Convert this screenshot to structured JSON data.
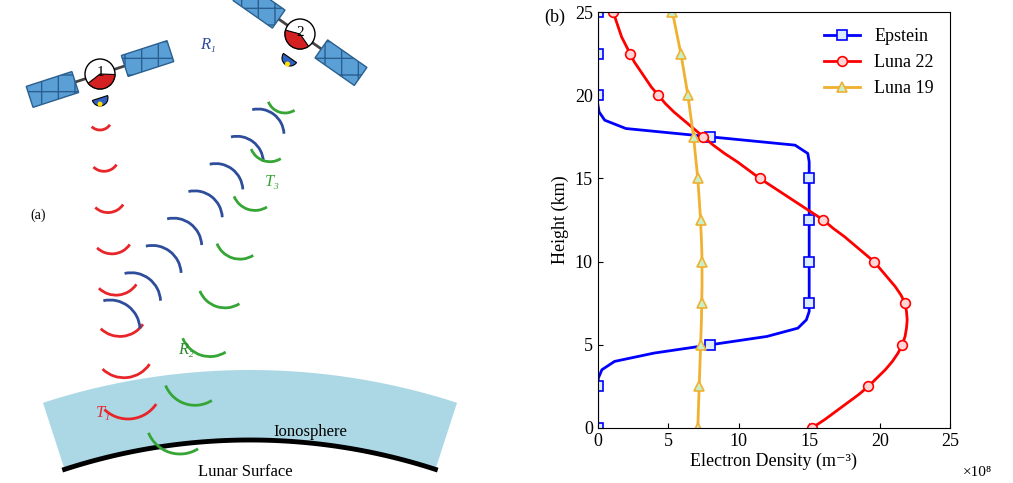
{
  "diagram": {
    "panel_label": "(a)",
    "satellites": [
      "1",
      "2"
    ],
    "signals": [
      {
        "label": "T₁",
        "color": "#e8262a"
      },
      {
        "label": "R₁",
        "color": "#2e4d9a"
      },
      {
        "label": "T₃",
        "color": "#35a535"
      },
      {
        "label": "R₂",
        "color": "#2d8a2d"
      }
    ],
    "regions": {
      "ionosphere": "Ionosphere",
      "surface": "Lunar Surface"
    }
  },
  "chart_data": {
    "type": "line",
    "title": "(b)",
    "x_label": "Electron Density (m⁻³)",
    "y_label": "Height (km)",
    "annotations": [
      "×10⁸"
    ],
    "y": [
      0,
      0.5,
      1,
      1.5,
      2,
      2.5,
      3,
      3.5,
      4,
      4.5,
      5,
      5.5,
      6,
      6.5,
      7,
      7.5,
      8,
      8.5,
      9,
      9.5,
      10,
      10.5,
      11,
      11.5,
      12,
      12.5,
      13,
      13.5,
      14,
      14.5,
      15,
      15.5,
      16,
      16.5,
      17,
      17.5,
      18,
      18.5,
      19,
      19.5,
      20,
      20.5,
      21,
      21.5,
      22,
      22.5,
      23,
      23.5,
      24,
      24.5,
      25
    ],
    "series": [
      {
        "name": "Epstein",
        "color": "#0000ff",
        "marker": "square",
        "values": [
          0,
          0,
          0,
          0,
          0,
          0,
          0.05,
          0.3,
          1.2,
          4,
          8,
          12,
          14.2,
          14.8,
          15,
          15,
          15,
          15,
          15,
          15,
          15,
          15,
          15,
          15,
          15,
          15,
          15,
          15,
          15,
          15,
          15,
          15,
          15,
          14.9,
          14,
          8,
          2,
          0.5,
          0.1,
          0,
          0,
          0,
          0,
          0,
          0,
          0,
          0,
          0,
          0,
          0,
          0
        ]
      },
      {
        "name": "Luna 22",
        "color": "#ff0000",
        "marker": "circle",
        "values": [
          15.2,
          16.1,
          16.9,
          17.7,
          18.5,
          19.2,
          19.8,
          20.4,
          20.9,
          21.3,
          21.6,
          21.8,
          21.9,
          21.95,
          21.9,
          21.8,
          21.5,
          21.1,
          20.6,
          20.1,
          19.6,
          18.9,
          18.2,
          17.5,
          16.7,
          16.0,
          15.1,
          14.2,
          13.3,
          12.4,
          11.5,
          10.7,
          9.9,
          9.0,
          8.2,
          7.5,
          6.8,
          6.1,
          5.4,
          4.8,
          4.3,
          3.8,
          3.4,
          3.0,
          2.6,
          2.3,
          2.0,
          1.7,
          1.5,
          1.3,
          1.1
        ]
      },
      {
        "name": "Luna 19",
        "color": "#f0b030",
        "marker": "triangle",
        "values": [
          7.1,
          7.12,
          7.14,
          7.16,
          7.18,
          7.2,
          7.22,
          7.24,
          7.26,
          7.28,
          7.3,
          7.32,
          7.34,
          7.36,
          7.37,
          7.38,
          7.39,
          7.4,
          7.4,
          7.4,
          7.4,
          7.39,
          7.37,
          7.35,
          7.32,
          7.3,
          7.26,
          7.22,
          7.18,
          7.14,
          7.1,
          7.04,
          6.98,
          6.92,
          6.86,
          6.8,
          6.72,
          6.64,
          6.56,
          6.48,
          6.4,
          6.3,
          6.2,
          6.1,
          6.0,
          5.9,
          5.78,
          5.66,
          5.54,
          5.42,
          5.3
        ]
      }
    ],
    "xlim": [
      0,
      25
    ],
    "xticks": [
      0,
      5,
      10,
      15,
      20,
      25
    ],
    "ylim": [
      0,
      25
    ],
    "yticks": [
      0,
      5,
      10,
      15,
      20,
      25
    ],
    "legend": "upper right",
    "grid": false
  }
}
